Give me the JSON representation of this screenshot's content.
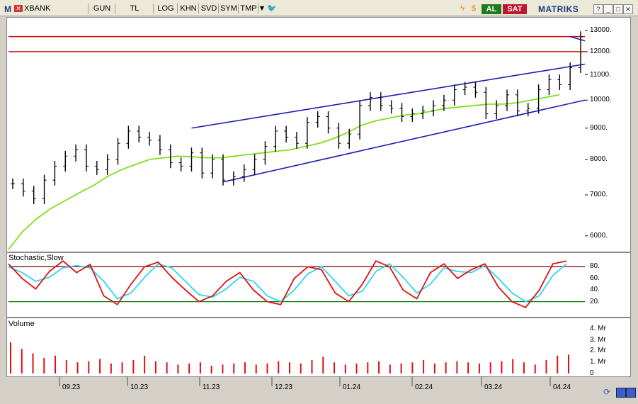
{
  "toolbar": {
    "symbol": "XBANK",
    "period": "GUN",
    "currency": "TL",
    "items": [
      "LOG",
      "KHN",
      "SVD",
      "SYM",
      "TMP"
    ],
    "buy_label": "AL",
    "sell_label": "SAT",
    "brand": "MATRIKS"
  },
  "price_axis": [
    "13000.",
    "12000.",
    "11000.",
    "10000.",
    "9000.",
    "8000.",
    "7000.",
    "6000."
  ],
  "stoch": {
    "title": "Stochastic,Slow",
    "ticks": [
      "80.",
      "60.",
      "40.",
      "20."
    ],
    "upper": 80,
    "lower": 20
  },
  "volume": {
    "title": "Volume",
    "ticks": [
      "4. Mr",
      "3. Mr",
      "2. Mr",
      "1. Mr",
      "0"
    ]
  },
  "x_axis": [
    "09.23",
    "10.23",
    "11.23",
    "12.23",
    "01.24",
    "02.24",
    "03.24",
    "04.24"
  ],
  "colors": {
    "price": "#000000",
    "ma": "#7fe01e",
    "trend": "#1c1cb4",
    "resistance": "#d01010",
    "stoch_k": "#e01010",
    "stoch_d": "#2ad8f0",
    "volume": "#e01010"
  },
  "chart_data": {
    "type": "line",
    "title": "",
    "xlabel": "",
    "ylabel": "",
    "ylim": [
      5700,
      13600
    ],
    "resistance_levels": [
      12700,
      12000
    ],
    "price": [
      7300,
      7100,
      6900,
      7400,
      7800,
      8100,
      8300,
      7800,
      7700,
      8000,
      8500,
      8900,
      8700,
      8600,
      8300,
      7900,
      7800,
      8200,
      7600,
      8000,
      7400,
      7500,
      7700,
      8000,
      8400,
      8900,
      8700,
      8500,
      9200,
      9400,
      9000,
      8500,
      8800,
      9800,
      10100,
      9800,
      9700,
      9400,
      9500,
      9600,
      9800,
      10000,
      10400,
      10500,
      10300,
      9500,
      9800,
      10200,
      9600,
      9700,
      10400,
      10800,
      10600,
      11300,
      12700
    ],
    "ma": [
      5700,
      6100,
      6400,
      6650,
      6850,
      7050,
      7250,
      7500,
      7700,
      7850,
      8000,
      8050,
      8100,
      8080,
      8050,
      8050,
      8100,
      8150,
      8200,
      8250,
      8300,
      8400,
      8500,
      8650,
      8850,
      9100,
      9250,
      9350,
      9450,
      9500,
      9600,
      9700,
      9750,
      9800,
      9850,
      9850,
      9900,
      10000,
      10100,
      10200
    ],
    "stochastic": {
      "k": [
        85,
        60,
        42,
        72,
        90,
        70,
        84,
        30,
        15,
        50,
        80,
        88,
        62,
        40,
        20,
        30,
        55,
        70,
        40,
        20,
        15,
        60,
        80,
        75,
        35,
        20,
        50,
        90,
        80,
        40,
        25,
        70,
        85,
        60,
        75,
        85,
        45,
        20,
        10,
        40,
        85,
        90
      ],
      "d": [
        80,
        70,
        55,
        62,
        78,
        82,
        78,
        55,
        25,
        35,
        62,
        85,
        78,
        55,
        32,
        28,
        42,
        62,
        55,
        30,
        20,
        40,
        68,
        80,
        55,
        30,
        38,
        72,
        85,
        62,
        35,
        50,
        78,
        72,
        70,
        82,
        60,
        35,
        20,
        30,
        65,
        85
      ]
    },
    "volume": [
      2.8,
      2.2,
      1.8,
      1.4,
      1.6,
      1.2,
      1.0,
      1.1,
      1.3,
      0.9,
      1.0,
      1.2,
      1.6,
      1.1,
      1.0,
      0.8,
      0.9,
      1.0,
      0.7,
      0.8,
      0.9,
      1.0,
      0.8,
      0.9,
      1.1,
      1.0,
      0.9,
      1.2,
      1.5,
      1.0,
      0.8,
      0.9,
      1.0,
      1.1,
      0.8,
      0.9,
      1.0,
      1.2,
      0.9,
      1.0,
      1.1,
      1.0,
      0.9,
      1.0,
      1.1,
      1.3,
      1.0,
      0.8,
      1.2,
      1.6,
      1.7
    ]
  }
}
